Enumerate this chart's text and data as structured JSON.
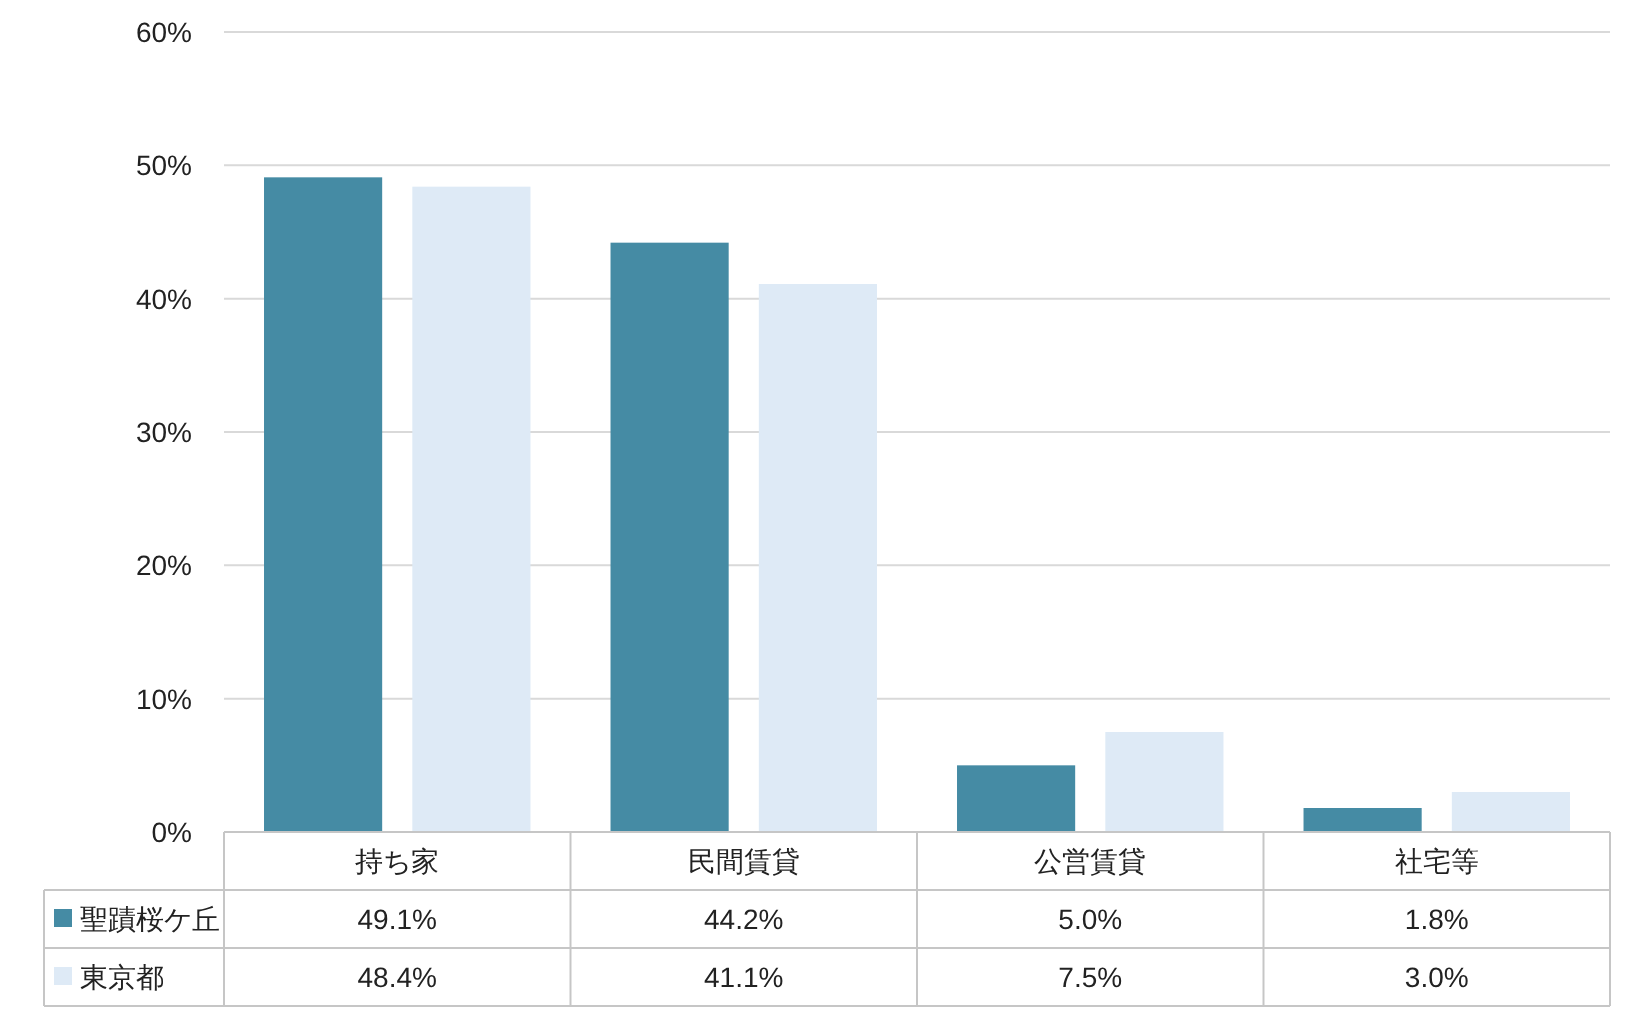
{
  "chart_data": {
    "type": "bar",
    "categories": [
      "持ち家",
      "民間賃貸",
      "公営賃貸",
      "社宅等"
    ],
    "series": [
      {
        "name": "聖蹟桜ケ丘",
        "color": "#458ba4",
        "values": [
          49.1,
          44.2,
          5.0,
          1.8
        ],
        "value_labels": [
          "49.1%",
          "44.2%",
          "5.0%",
          "1.8%"
        ]
      },
      {
        "name": "東京都",
        "color": "#deeaf6",
        "values": [
          48.4,
          41.1,
          7.5,
          3.0
        ],
        "value_labels": [
          "48.4%",
          "41.1%",
          "7.5%",
          "3.0%"
        ]
      }
    ],
    "ylim": [
      0,
      60
    ],
    "yticks": [
      {
        "value": 0,
        "label": "0%"
      },
      {
        "value": 10,
        "label": "10%"
      },
      {
        "value": 20,
        "label": "20%"
      },
      {
        "value": 30,
        "label": "30%"
      },
      {
        "value": 40,
        "label": "40%"
      },
      {
        "value": 50,
        "label": "50%"
      },
      {
        "value": 60,
        "label": "60%"
      }
    ],
    "grid": "y",
    "legend": "bottom"
  }
}
